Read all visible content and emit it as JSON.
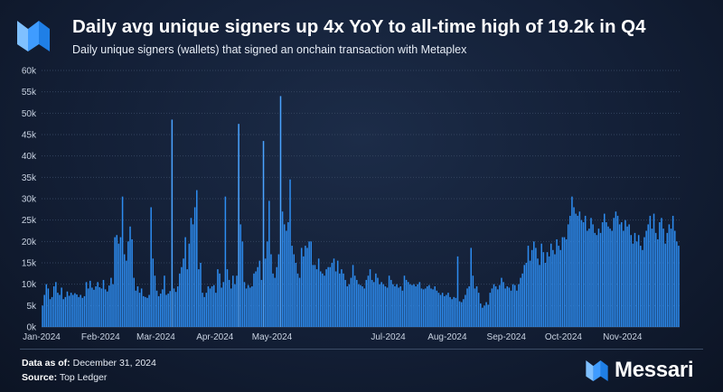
{
  "header": {
    "title": "Daily avg unique signers up 4x YoY to all-time high of 19.2k in Q4",
    "subtitle": "Daily unique signers (wallets) that signed an onchain transaction with Metaplex"
  },
  "footer": {
    "data_as_of_label": "Data as of:",
    "data_as_of_value": "December 31, 2024",
    "source_label": "Source:",
    "source_value": "Top Ledger",
    "brand": "Messari"
  },
  "colors": {
    "bar": "#2d8cf0",
    "bar_highlight": "#4aa3ff",
    "gridline": "#33435e",
    "axis_text": "#c9d3e2"
  },
  "chart_data": {
    "type": "bar",
    "title": "",
    "xlabel": "",
    "ylabel": "",
    "ylim": [
      0,
      60000
    ],
    "grid": true,
    "y_ticks": [
      0,
      5000,
      10000,
      15000,
      20000,
      25000,
      30000,
      35000,
      40000,
      45000,
      50000,
      55000,
      60000
    ],
    "y_tick_labels": [
      "0k",
      "5k",
      "10k",
      "15k",
      "20k",
      "25k",
      "30k",
      "35k",
      "40k",
      "45k",
      "50k",
      "55k",
      "60k"
    ],
    "x_tick_labels": [
      "Jan-2024",
      "Feb-2024",
      "Mar-2024",
      "Apr-2024",
      "May-2024",
      "Jul-2024",
      "Aug-2024",
      "Sep-2024",
      "Oct-2024",
      "Nov-2024"
    ],
    "x_tick_day_index": [
      0,
      31,
      60,
      91,
      121,
      182,
      213,
      244,
      274,
      305
    ],
    "series": [
      {
        "name": "",
        "values": [
          5000,
          7500,
          10000,
          9000,
          6500,
          7000,
          9500,
          10500,
          8000,
          7500,
          9200,
          6500,
          7000,
          8300,
          7300,
          8000,
          7500,
          7900,
          7600,
          7000,
          7500,
          6800,
          7200,
          10500,
          9000,
          10800,
          9200,
          8700,
          9500,
          10500,
          9300,
          9000,
          11000,
          8800,
          8300,
          9700,
          11500,
          10000,
          21000,
          21500,
          19500,
          21000,
          30500,
          17000,
          15500,
          20000,
          23500,
          20500,
          11500,
          8500,
          9500,
          8000,
          9000,
          7200,
          7000,
          6800,
          7500,
          28000,
          16000,
          12000,
          8500,
          7200,
          7800,
          8800,
          12000,
          7500,
          7800,
          8400,
          48500,
          9000,
          8200,
          9500,
          12500,
          14000,
          16000,
          21000,
          13500,
          19500,
          25500,
          24000,
          28000,
          32000,
          13500,
          15000,
          8000,
          7000,
          8000,
          9500,
          9000,
          9500,
          9800,
          8000,
          13500,
          12500,
          9200,
          10500,
          30500,
          13500,
          11000,
          9000,
          12000,
          10000,
          12000,
          47500,
          24000,
          20000,
          10500,
          9000,
          9800,
          9200,
          9500,
          12500,
          13000,
          14000,
          15500,
          11000,
          43500,
          16000,
          20000,
          29500,
          17000,
          12500,
          11500,
          14000,
          17000,
          54000,
          27000,
          24000,
          22500,
          24500,
          34500,
          19000,
          17000,
          15000,
          12500,
          11500,
          18500,
          16500,
          19000,
          18500,
          20000,
          20000,
          14500,
          14500,
          13500,
          16000,
          13000,
          12500,
          12000,
          13500,
          14000,
          14000,
          15000,
          16000,
          13000,
          15500,
          12500,
          13500,
          12500,
          11000,
          9500,
          10000,
          11500,
          14500,
          12000,
          11000,
          10000,
          9800,
          9500,
          9000,
          11000,
          12000,
          13500,
          11000,
          10500,
          12500,
          11500,
          10000,
          10500,
          10000,
          9500,
          9200,
          12000,
          11000,
          10000,
          9500,
          10000,
          9200,
          9500,
          8500,
          12000,
          11000,
          10500,
          10000,
          9800,
          10000,
          9500,
          10000,
          10500,
          9000,
          8800,
          9000,
          9500,
          9800,
          9000,
          8800,
          9500,
          8500,
          8000,
          7500,
          8000,
          7200,
          7500,
          8000,
          7000,
          6500,
          7000,
          6800,
          16500,
          6000,
          5800,
          6500,
          7500,
          9000,
          9500,
          18500,
          12000,
          9000,
          9500,
          8000,
          5500,
          4500,
          5000,
          5800,
          5200,
          8000,
          9000,
          10000,
          9500,
          8800,
          9800,
          11500,
          10500,
          9000,
          9500,
          9200,
          8500,
          10000,
          9800,
          8500,
          10000,
          11500,
          12500,
          14500,
          15000,
          19000,
          15500,
          18000,
          20000,
          18500,
          16000,
          14500,
          19500,
          17500,
          15000,
          17500,
          16500,
          19500,
          18000,
          17000,
          20500,
          19000,
          18000,
          21000,
          21000,
          20500,
          24000,
          26000,
          30500,
          28000,
          26500,
          26000,
          27000,
          25000,
          24500,
          26000,
          22500,
          23000,
          25500,
          24000,
          22000,
          21500,
          23000,
          22000,
          24500,
          26500,
          24500,
          23500,
          23000,
          22500,
          25500,
          27000,
          26000,
          24000,
          24500,
          22500,
          25000,
          23500,
          24000,
          21500,
          19500,
          22000,
          20000,
          21500,
          19000,
          18000,
          21000,
          22500,
          24000,
          26000,
          23000,
          26500,
          22000,
          20500,
          24500,
          25500,
          23000,
          19500,
          22000,
          24000,
          23000,
          26000,
          22500,
          20000,
          19000
        ]
      }
    ]
  }
}
